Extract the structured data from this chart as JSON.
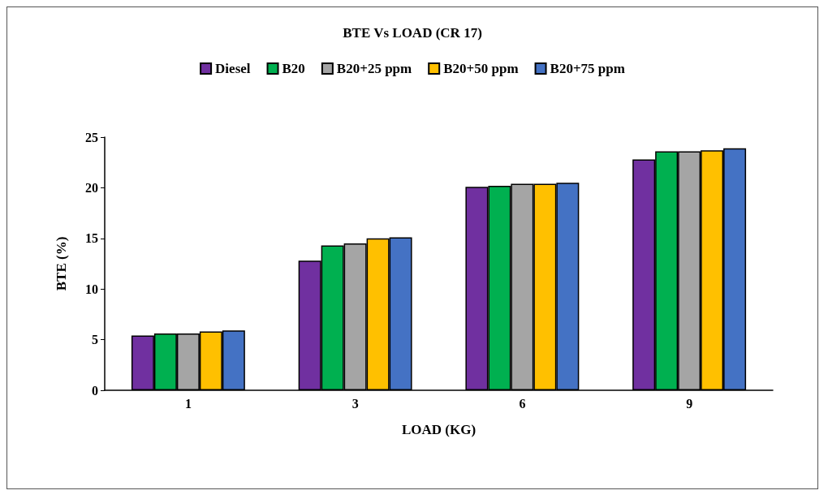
{
  "chart_data": {
    "type": "bar",
    "title": "BTE Vs LOAD (CR 17)",
    "xlabel": "LOAD (KG)",
    "ylabel": "BTE (%)",
    "categories": [
      "1",
      "3",
      "6",
      "9"
    ],
    "series": [
      {
        "name": "Diesel",
        "color": "#7030a0",
        "values": [
          5.4,
          12.8,
          20.1,
          22.8
        ]
      },
      {
        "name": "B20",
        "color": "#00b050",
        "values": [
          5.6,
          14.3,
          20.2,
          23.6
        ]
      },
      {
        "name": "B20+25 ppm",
        "color": "#a5a5a5",
        "values": [
          5.6,
          14.5,
          20.4,
          23.6
        ]
      },
      {
        "name": "B20+50 ppm",
        "color": "#ffc000",
        "values": [
          5.8,
          15.0,
          20.4,
          23.7
        ]
      },
      {
        "name": "B20+75 ppm",
        "color": "#4472c4",
        "values": [
          5.9,
          15.1,
          20.5,
          23.9
        ]
      }
    ],
    "ylim": [
      0,
      25
    ],
    "yticks": [
      0,
      5,
      10,
      15,
      20,
      25
    ],
    "grid": false,
    "legend": "top"
  }
}
